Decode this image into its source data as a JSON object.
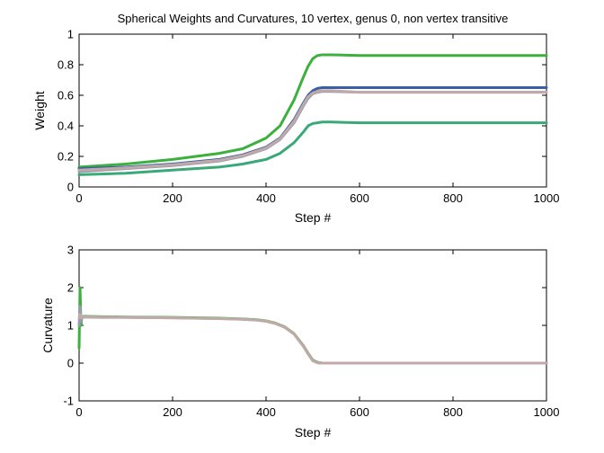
{
  "chart_data": [
    {
      "type": "line",
      "title": "Spherical Weights and Curvatures, 10 vertex, genus 0, non vertex transitive",
      "xlabel": "Step #",
      "ylabel": "Weight",
      "xlim": [
        0,
        1000
      ],
      "ylim": [
        0,
        1
      ],
      "xticks": [
        "0",
        "200",
        "400",
        "600",
        "800",
        "1000"
      ],
      "yticks": [
        "0",
        "0.2",
        "0.4",
        "0.6",
        "0.8",
        "1"
      ],
      "grid": false,
      "legend": "none",
      "series": [
        {
          "color": "#3cb03c",
          "x": [
            0,
            100,
            200,
            300,
            350,
            400,
            430,
            460,
            480,
            490,
            500,
            510,
            520,
            540,
            600,
            800,
            1000
          ],
          "values": [
            0.13,
            0.15,
            0.18,
            0.22,
            0.25,
            0.32,
            0.4,
            0.57,
            0.72,
            0.79,
            0.84,
            0.86,
            0.865,
            0.865,
            0.86,
            0.86,
            0.86
          ]
        },
        {
          "color": "#3a5fa8",
          "x": [
            0,
            100,
            200,
            300,
            350,
            400,
            430,
            460,
            480,
            490,
            500,
            510,
            520,
            540,
            600,
            800,
            1000
          ],
          "values": [
            0.12,
            0.13,
            0.15,
            0.18,
            0.21,
            0.26,
            0.32,
            0.44,
            0.55,
            0.6,
            0.63,
            0.645,
            0.65,
            0.65,
            0.65,
            0.65,
            0.65
          ]
        },
        {
          "color": "#9a9ab0",
          "x": [
            0,
            100,
            200,
            300,
            350,
            400,
            430,
            460,
            480,
            490,
            500,
            510,
            520,
            540,
            600,
            800,
            1000
          ],
          "values": [
            0.1,
            0.12,
            0.14,
            0.17,
            0.2,
            0.25,
            0.31,
            0.42,
            0.53,
            0.58,
            0.61,
            0.62,
            0.625,
            0.625,
            0.62,
            0.62,
            0.62
          ]
        },
        {
          "color": "#c0aaa8",
          "x": [
            0,
            100,
            200,
            300,
            350,
            400,
            430,
            460,
            480,
            490,
            500,
            510,
            520,
            540,
            600,
            800,
            1000
          ],
          "values": [
            0.11,
            0.125,
            0.145,
            0.175,
            0.205,
            0.255,
            0.315,
            0.43,
            0.54,
            0.59,
            0.615,
            0.625,
            0.63,
            0.63,
            0.62,
            0.62,
            0.62
          ]
        },
        {
          "color": "#3aa878",
          "x": [
            0,
            100,
            200,
            300,
            350,
            400,
            430,
            460,
            480,
            490,
            500,
            510,
            520,
            540,
            600,
            800,
            1000
          ],
          "values": [
            0.08,
            0.09,
            0.11,
            0.13,
            0.15,
            0.18,
            0.22,
            0.29,
            0.36,
            0.4,
            0.415,
            0.42,
            0.425,
            0.425,
            0.42,
            0.42,
            0.42
          ]
        }
      ]
    },
    {
      "type": "line",
      "title": "",
      "xlabel": "Step #",
      "ylabel": "Curvature",
      "xlim": [
        0,
        1000
      ],
      "ylim": [
        -1,
        3
      ],
      "xticks": [
        "0",
        "200",
        "400",
        "600",
        "800",
        "1000"
      ],
      "yticks": [
        "-1",
        "0",
        "1",
        "2",
        "3"
      ],
      "grid": false,
      "legend": "none",
      "series": [
        {
          "color": "#3cb03c",
          "x": [
            0,
            2,
            4,
            6,
            10,
            50,
            100,
            200,
            300,
            350,
            380,
            400,
            420,
            440,
            460,
            480,
            490,
            500,
            510,
            520,
            600,
            800,
            1000
          ],
          "values": [
            0.4,
            2.0,
            1.0,
            1.22,
            1.24,
            1.23,
            1.22,
            1.21,
            1.19,
            1.17,
            1.15,
            1.12,
            1.06,
            0.96,
            0.78,
            0.46,
            0.26,
            0.08,
            0.02,
            0.0,
            0.0,
            0.0,
            0.0
          ]
        },
        {
          "color": "#9a9ab0",
          "x": [
            0,
            2,
            4,
            6,
            10,
            50,
            100,
            200,
            300,
            350,
            380,
            400,
            420,
            440,
            460,
            480,
            490,
            500,
            510,
            520,
            600,
            800,
            1000
          ],
          "values": [
            1.0,
            1.5,
            1.1,
            1.2,
            1.22,
            1.21,
            1.21,
            1.2,
            1.18,
            1.16,
            1.14,
            1.11,
            1.05,
            0.95,
            0.77,
            0.45,
            0.25,
            0.07,
            0.01,
            0.0,
            0.0,
            0.0,
            0.0
          ]
        },
        {
          "color": "#c0aaa8",
          "x": [
            0,
            2,
            4,
            6,
            10,
            50,
            100,
            200,
            300,
            350,
            380,
            400,
            420,
            440,
            460,
            480,
            490,
            500,
            510,
            520,
            600,
            800,
            1000
          ],
          "values": [
            1.2,
            1.3,
            1.2,
            1.21,
            1.23,
            1.22,
            1.21,
            1.2,
            1.18,
            1.16,
            1.14,
            1.11,
            1.05,
            0.95,
            0.77,
            0.44,
            0.24,
            0.06,
            0.01,
            0.0,
            0.0,
            0.0,
            0.0
          ]
        }
      ]
    }
  ]
}
